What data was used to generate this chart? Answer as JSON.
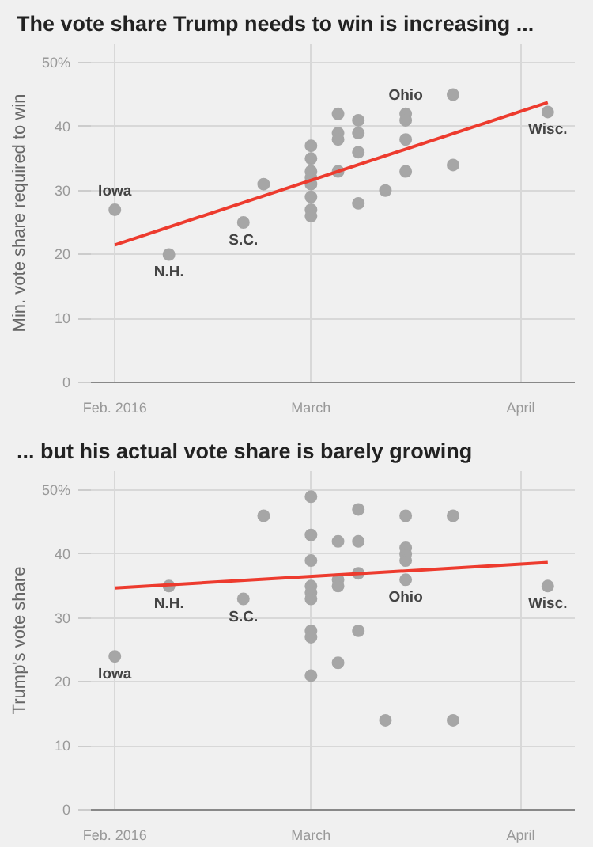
{
  "chart_data": [
    {
      "type": "scatter",
      "title": "The vote share Trump needs to win is increasing ...",
      "ylabel": "Min. vote share required to win",
      "xlim": [
        "2016-01-28",
        "2016-04-09"
      ],
      "ylim": [
        0,
        53
      ],
      "xticks": [
        {
          "value": "2016-02-01",
          "label": "Feb. 2016"
        },
        {
          "value": "2016-03-01",
          "label": "March"
        },
        {
          "value": "2016-04-01",
          "label": "April"
        }
      ],
      "yticks": [
        0,
        10,
        20,
        30,
        40,
        {
          "value": 50,
          "label": "50%"
        }
      ],
      "grid": true,
      "series": [
        {
          "marker": "circle",
          "color": "#a6a6a6",
          "x": [
            "2016-02-01",
            "2016-02-09",
            "2016-02-20",
            "2016-02-23",
            "2016-03-01",
            "2016-03-01",
            "2016-03-01",
            "2016-03-01",
            "2016-03-01",
            "2016-03-01",
            "2016-03-01",
            "2016-03-01",
            "2016-03-05",
            "2016-03-05",
            "2016-03-05",
            "2016-03-05",
            "2016-03-08",
            "2016-03-08",
            "2016-03-08",
            "2016-03-08",
            "2016-03-12",
            "2016-03-15",
            "2016-03-15",
            "2016-03-15",
            "2016-03-15",
            "2016-03-22",
            "2016-03-22",
            "2016-04-05"
          ],
          "values": [
            27,
            20,
            25,
            31,
            37,
            35,
            33,
            32,
            31,
            29,
            27,
            26,
            42,
            39,
            38,
            33,
            41,
            39,
            36,
            28,
            30,
            42,
            41,
            38,
            33,
            45,
            34,
            42.3
          ]
        },
        {
          "type": "line",
          "color": "#ed3b2e",
          "x": [
            "2016-02-01",
            "2016-04-05"
          ],
          "values": [
            21.5,
            43.8
          ]
        }
      ],
      "annotations": [
        {
          "text": "Iowa",
          "x": "2016-02-01",
          "y": 27
        },
        {
          "text": "N.H.",
          "x": "2016-02-09",
          "y": 20
        },
        {
          "text": "S.C.",
          "x": "2016-02-20",
          "y": 25
        },
        {
          "text": "Ohio",
          "x": "2016-03-15",
          "y": 42
        },
        {
          "text": "Wisc.",
          "x": "2016-04-05",
          "y": 42.3
        }
      ]
    },
    {
      "type": "scatter",
      "title": "... but his actual vote share is barely growing",
      "ylabel": "Trump's vote share",
      "xlim": [
        "2016-01-28",
        "2016-04-09"
      ],
      "ylim": [
        0,
        53
      ],
      "xticks": [
        {
          "value": "2016-02-01",
          "label": "Feb. 2016"
        },
        {
          "value": "2016-03-01",
          "label": "March"
        },
        {
          "value": "2016-04-01",
          "label": "April"
        }
      ],
      "yticks": [
        0,
        10,
        20,
        30,
        40,
        {
          "value": 50,
          "label": "50%"
        }
      ],
      "grid": true,
      "series": [
        {
          "marker": "circle",
          "color": "#a6a6a6",
          "x": [
            "2016-02-01",
            "2016-02-09",
            "2016-02-20",
            "2016-02-23",
            "2016-03-01",
            "2016-03-01",
            "2016-03-01",
            "2016-03-01",
            "2016-03-01",
            "2016-03-01",
            "2016-03-01",
            "2016-03-01",
            "2016-03-01",
            "2016-03-05",
            "2016-03-05",
            "2016-03-05",
            "2016-03-05",
            "2016-03-08",
            "2016-03-08",
            "2016-03-08",
            "2016-03-08",
            "2016-03-12",
            "2016-03-15",
            "2016-03-15",
            "2016-03-15",
            "2016-03-15",
            "2016-03-15",
            "2016-03-22",
            "2016-03-22",
            "2016-04-05"
          ],
          "values": [
            24,
            35,
            33,
            46,
            49,
            43,
            39,
            35,
            34,
            33,
            28,
            27,
            21,
            42,
            36,
            35,
            23,
            47,
            42,
            37,
            28,
            14,
            46,
            41,
            40,
            39,
            36,
            46,
            14,
            35
          ]
        },
        {
          "type": "line",
          "color": "#ed3b2e",
          "x": [
            "2016-02-01",
            "2016-04-05"
          ],
          "values": [
            34.7,
            38.7
          ]
        }
      ],
      "annotations": [
        {
          "text": "Iowa",
          "x": "2016-02-01",
          "y": 24
        },
        {
          "text": "N.H.",
          "x": "2016-02-09",
          "y": 35
        },
        {
          "text": "S.C.",
          "x": "2016-02-20",
          "y": 33
        },
        {
          "text": "Ohio",
          "x": "2016-03-15",
          "y": 36
        },
        {
          "text": "Wisc.",
          "x": "2016-04-05",
          "y": 35
        }
      ]
    }
  ]
}
